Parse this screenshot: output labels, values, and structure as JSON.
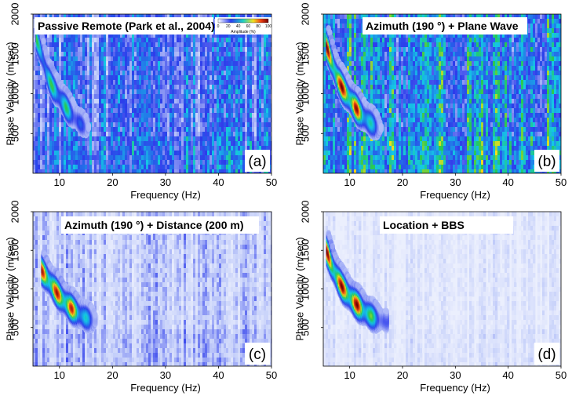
{
  "chart_data": [
    {
      "type": "heatmap",
      "title": "Passive Remote (Park et al., 2004)",
      "panel_label": "(a)",
      "xlabel": "Frequency (Hz)",
      "ylabel": "Phase Velocity (m/sec)",
      "xlim": [
        5,
        50
      ],
      "ylim": [
        0,
        2000
      ],
      "xticks": [
        "10",
        "20",
        "30",
        "40",
        "50"
      ],
      "yticks": [
        "500",
        "1000",
        "1500",
        "2000"
      ],
      "colorbar": {
        "label": "Amplitude (%)",
        "ticks": [
          "0",
          "20",
          "40",
          "60",
          "80",
          "100"
        ]
      },
      "background_level": 0.28,
      "dispersion_ridge": {
        "points": [
          [
            6,
            1700
          ],
          [
            7,
            1500
          ],
          [
            8,
            1250
          ],
          [
            9,
            1100
          ],
          [
            10,
            1000
          ],
          [
            11,
            900
          ],
          [
            12,
            800
          ],
          [
            13,
            720
          ],
          [
            14,
            650
          ],
          [
            15,
            600
          ],
          [
            16,
            560
          ]
        ],
        "peak_amplitude": 0.6
      }
    },
    {
      "type": "heatmap",
      "title": "Azimuth (190 °) + Plane Wave",
      "panel_label": "(b)",
      "xlabel": "Frequency (Hz)",
      "ylabel": "Phase Velocity (m/sec)",
      "xlim": [
        5,
        50
      ],
      "ylim": [
        0,
        2000
      ],
      "xticks": [
        "10",
        "20",
        "30",
        "40",
        "50"
      ],
      "yticks": [
        "500",
        "1000",
        "1500",
        "2000"
      ],
      "background_level": 0.38,
      "dispersion_ridge": {
        "points": [
          [
            6,
            1600
          ],
          [
            7,
            1400
          ],
          [
            8,
            1200
          ],
          [
            9,
            1080
          ],
          [
            10,
            980
          ],
          [
            11,
            880
          ],
          [
            12,
            790
          ],
          [
            13,
            720
          ],
          [
            14,
            660
          ],
          [
            15,
            610
          ],
          [
            16,
            570
          ]
        ],
        "peak_amplitude": 1.0
      }
    },
    {
      "type": "heatmap",
      "title": "Azimuth (190 °) + Distance (200 m)",
      "panel_label": "(c)",
      "xlabel": "Frequency (Hz)",
      "ylabel": "Phase Velocity (m/sec)",
      "xlim": [
        5,
        50
      ],
      "ylim": [
        0,
        2000
      ],
      "xticks": [
        "10",
        "20",
        "30",
        "40",
        "50"
      ],
      "yticks": [
        "500",
        "1000",
        "1500",
        "2000"
      ],
      "background_level": 0.12,
      "dispersion_ridge": {
        "points": [
          [
            7,
            1250
          ],
          [
            8,
            1150
          ],
          [
            9,
            1050
          ],
          [
            10,
            950
          ],
          [
            11,
            870
          ],
          [
            12,
            800
          ],
          [
            13,
            740
          ],
          [
            14,
            690
          ],
          [
            15,
            650
          ],
          [
            16,
            620
          ],
          [
            17,
            600
          ]
        ],
        "peak_amplitude": 0.95
      }
    },
    {
      "type": "heatmap",
      "title": "Location + BBS",
      "panel_label": "(d)",
      "xlabel": "Frequency (Hz)",
      "ylabel": "Phase Velocity (m/sec)",
      "xlim": [
        5,
        50
      ],
      "ylim": [
        0,
        2000
      ],
      "xticks": [
        "10",
        "20",
        "30",
        "40",
        "50"
      ],
      "yticks": [
        "500",
        "1000",
        "1500",
        "2000"
      ],
      "background_level": 0.06,
      "dispersion_ridge": {
        "points": [
          [
            6,
            1500
          ],
          [
            7,
            1300
          ],
          [
            8,
            1150
          ],
          [
            9,
            1030
          ],
          [
            10,
            940
          ],
          [
            11,
            860
          ],
          [
            12,
            790
          ],
          [
            13,
            730
          ],
          [
            14,
            680
          ],
          [
            15,
            640
          ],
          [
            16,
            610
          ],
          [
            17,
            590
          ]
        ],
        "peak_amplitude": 1.0
      }
    }
  ]
}
